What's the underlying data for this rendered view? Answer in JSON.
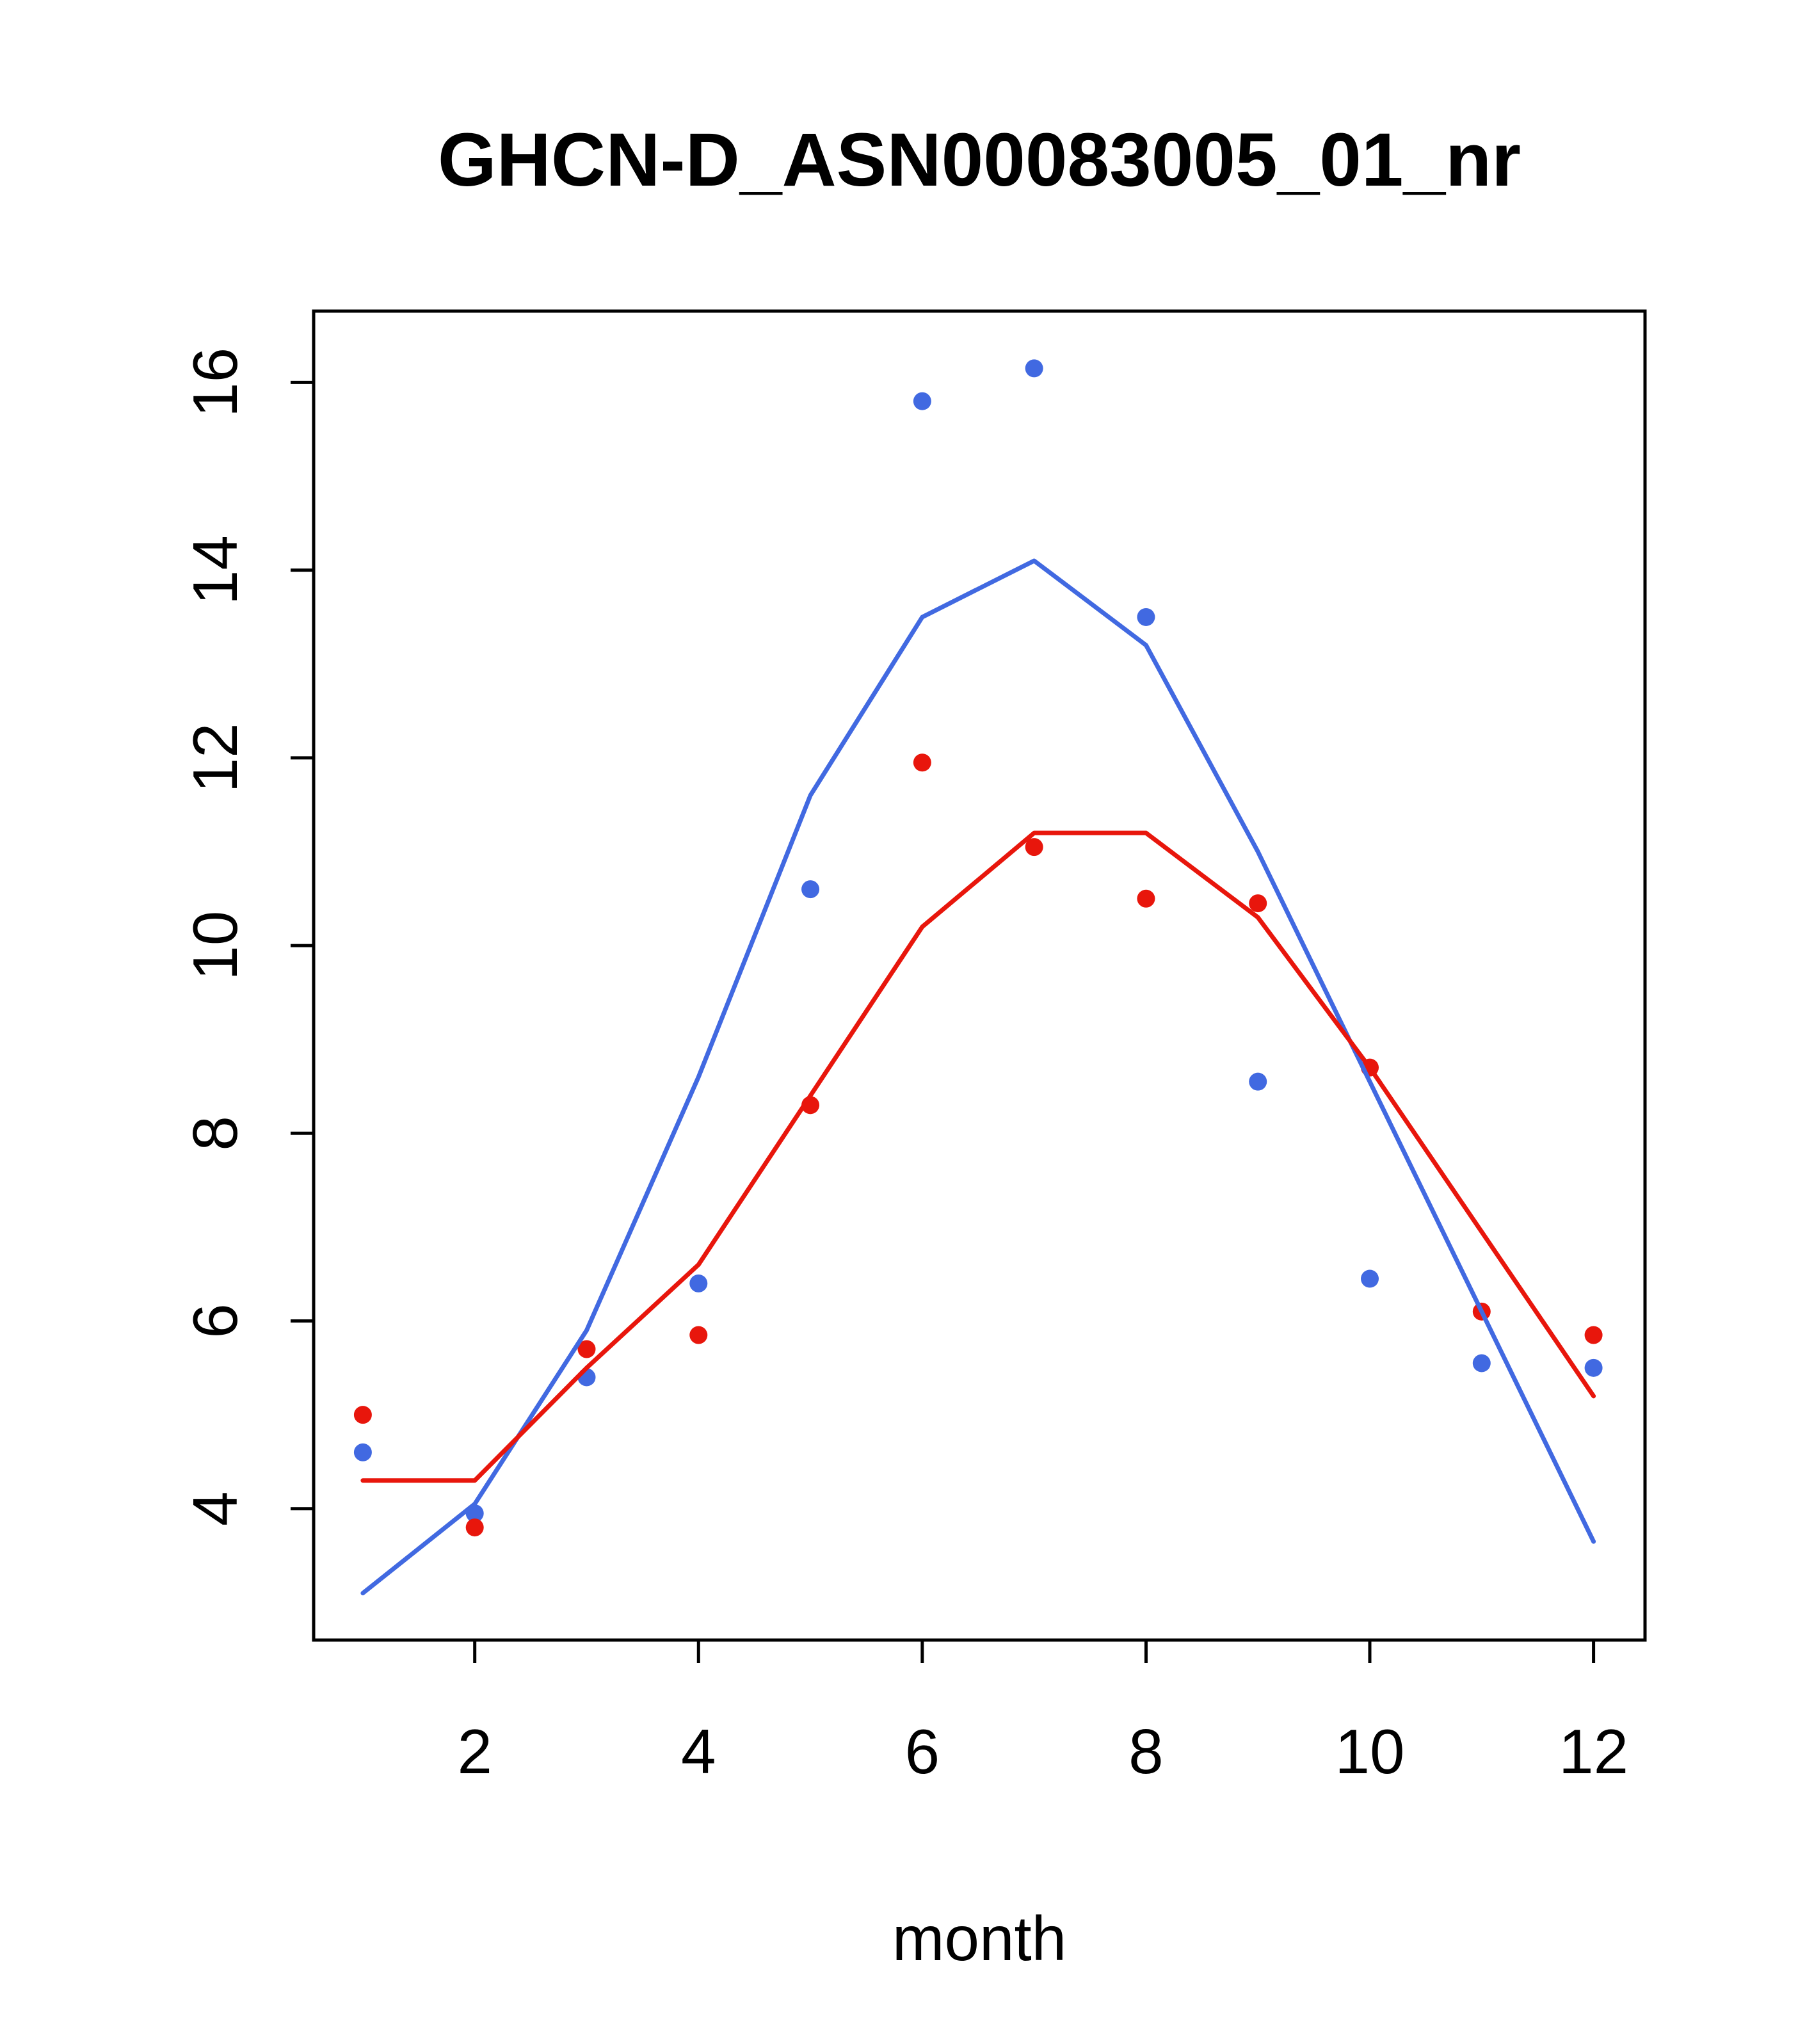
{
  "chart_data": {
    "type": "scatter",
    "title": "GHCN-D_ASN00083005_01_nr",
    "xlabel": "month",
    "ylabel": "",
    "xlim": [
      0.56,
      12.46
    ],
    "ylim": [
      2.6,
      16.76
    ],
    "x_ticks": [
      2,
      4,
      6,
      8,
      10,
      12
    ],
    "y_ticks": [
      4,
      6,
      8,
      10,
      12,
      14,
      16
    ],
    "grid": "off",
    "legend": "none",
    "x": [
      1,
      2,
      3,
      4,
      5,
      6,
      7,
      8,
      9,
      10,
      11,
      12
    ],
    "series": [
      {
        "name": "blue-points",
        "type": "points",
        "color": "#4169e1",
        "values": [
          4.6,
          3.95,
          5.4,
          6.4,
          10.6,
          15.8,
          16.15,
          13.5,
          8.55,
          6.45,
          5.55,
          5.5
        ]
      },
      {
        "name": "red-points",
        "type": "points",
        "color": "#e8160c",
        "values": [
          5.0,
          3.8,
          5.7,
          5.85,
          8.3,
          11.95,
          11.05,
          10.5,
          10.45,
          8.7,
          6.1,
          5.85
        ]
      },
      {
        "name": "blue-line",
        "type": "line",
        "color": "#4169e1",
        "values": [
          3.1,
          4.05,
          5.9,
          8.6,
          11.6,
          13.5,
          14.1,
          13.2,
          11.0,
          8.55,
          6.1,
          3.65
        ]
      },
      {
        "name": "red-line",
        "type": "line",
        "color": "#e8160c",
        "values": [
          4.3,
          4.3,
          5.5,
          6.6,
          8.4,
          10.2,
          11.2,
          11.2,
          10.3,
          8.7,
          6.95,
          5.2
        ]
      }
    ],
    "colors": {
      "axis": "#000000",
      "background": "#ffffff"
    }
  }
}
